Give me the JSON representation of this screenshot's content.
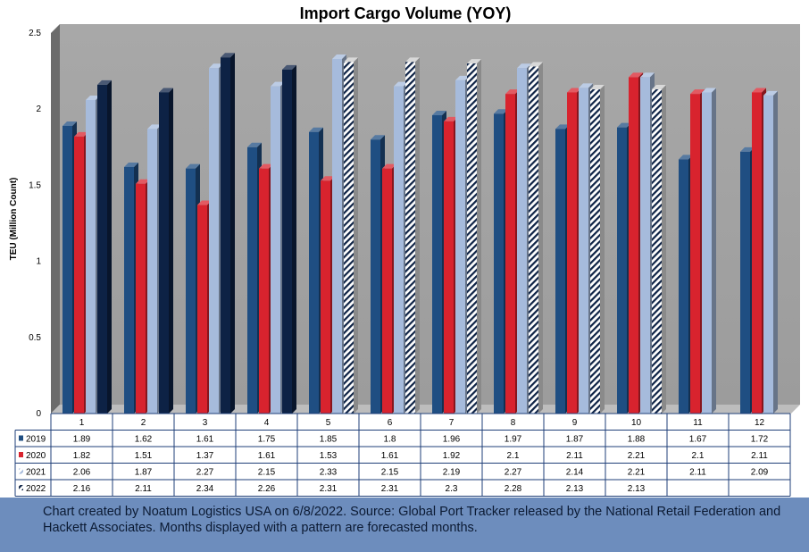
{
  "chart_data": {
    "type": "bar",
    "title": "Import Cargo Volume (YOY)",
    "ylabel": "TEU (Million Count)",
    "xlabel": "",
    "ylim": [
      0,
      2.5
    ],
    "yticks": [
      "0",
      "0.5",
      "1",
      "1.5",
      "2",
      "2.5"
    ],
    "categories": [
      "1",
      "2",
      "3",
      "4",
      "5",
      "6",
      "7",
      "8",
      "9",
      "10",
      "11",
      "12"
    ],
    "series": [
      {
        "name": "2019",
        "values": [
          1.89,
          1.62,
          1.61,
          1.75,
          1.85,
          1.8,
          1.96,
          1.97,
          1.87,
          1.88,
          1.67,
          1.72
        ],
        "color": "#1f4e82",
        "forecast_from": null
      },
      {
        "name": "2020",
        "values": [
          1.82,
          1.51,
          1.37,
          1.61,
          1.53,
          1.61,
          1.92,
          2.1,
          2.11,
          2.21,
          2.1,
          2.11
        ],
        "color": "#d8232e",
        "forecast_from": null
      },
      {
        "name": "2021",
        "values": [
          2.06,
          1.87,
          2.27,
          2.15,
          2.33,
          2.15,
          2.19,
          2.27,
          2.14,
          2.21,
          2.11,
          2.09
        ],
        "color": "#a6bbdc",
        "forecast_from": null
      },
      {
        "name": "2022",
        "values": [
          2.16,
          2.11,
          2.34,
          2.26,
          2.31,
          2.31,
          2.3,
          2.28,
          2.13,
          2.13,
          null,
          null
        ],
        "color": "#0d2245",
        "forecast_from": 5
      }
    ],
    "table_cells": [
      [
        "1.89",
        "1.62",
        "1.61",
        "1.75",
        "1.85",
        "1.8",
        "1.96",
        "1.97",
        "1.87",
        "1.88",
        "1.67",
        "1.72"
      ],
      [
        "1.82",
        "1.51",
        "1.37",
        "1.61",
        "1.53",
        "1.61",
        "1.92",
        "2.1",
        "2.11",
        "2.21",
        "2.1",
        "2.11"
      ],
      [
        "2.06",
        "1.87",
        "2.27",
        "2.15",
        "2.33",
        "2.15",
        "2.19",
        "2.27",
        "2.14",
        "2.21",
        "2.11",
        "2.09"
      ],
      [
        "2.16",
        "2.11",
        "2.34",
        "2.26",
        "2.31",
        "2.31",
        "2.3",
        "2.28",
        "2.13",
        "2.13",
        "",
        ""
      ]
    ],
    "legend_placement": "data-table",
    "grid": false
  },
  "footer": {
    "note": "Chart created by Noatum Logistics USA on 6/8/2022. Source: Global Port Tracker released by the National Retail Federation and Hackett Associates. Months displayed with a pattern are forecasted months."
  },
  "colors": {
    "plot_back": "#a3a3a3",
    "plot_side": "#6b6b6b",
    "floor": "#bdbdbd",
    "table_border": "#1f3f78",
    "footer_bg": "#6d8dbd"
  }
}
